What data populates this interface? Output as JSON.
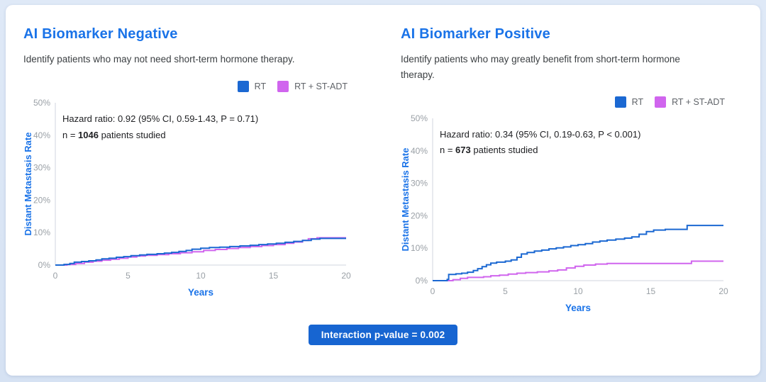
{
  "colors": {
    "accent": "#1a73e8",
    "badge_background": "#1765d1",
    "rt_blue": "#1b68d2",
    "st_adt_magenta": "#d065ee",
    "axis_line": "#e1e4ea",
    "tick_text": "#9aa0a6"
  },
  "legend": [
    {
      "label": "RT",
      "color": "#1b68d2"
    },
    {
      "label": "RT + ST-ADT",
      "color": "#d065ee"
    }
  ],
  "panels": [
    {
      "title": "AI Biomarker Negative",
      "subtitle": "Identify patients who may not need short-term hormone therapy.",
      "hazard": "Hazard ratio: 0.92 (95% CI, 0.59-1.43, P = 0.71)",
      "n_prefix": "n = ",
      "n_value": "1046",
      "n_suffix": " patients studied"
    },
    {
      "title": "AI Biomarker Positive",
      "subtitle": "Identify patients who may greatly benefit from short-term hormone therapy.",
      "hazard": "Hazard ratio: 0.34 (95% CI, 0.19-0.63, P < 0.001)",
      "n_prefix": "n = ",
      "n_value": "673",
      "n_suffix": " patients studied"
    }
  ],
  "footer": {
    "badge_label": "Interaction p-value = 0.002"
  },
  "chart_data": [
    {
      "type": "line",
      "title": "AI Biomarker Negative",
      "xlabel": "Years",
      "ylabel": "Distant Metastasis Rate",
      "xlim": [
        0,
        20
      ],
      "ylim": [
        0,
        50
      ],
      "xtick_values": [
        0,
        5,
        10,
        15,
        20
      ],
      "xtick_labels": [
        "0",
        "5",
        "10",
        "15",
        "20"
      ],
      "ytick_values": [
        0,
        10,
        20,
        30,
        40,
        50
      ],
      "ytick_labels": [
        "0%",
        "10%",
        "20%",
        "30%",
        "40%",
        "50%"
      ],
      "grid": false,
      "step": true,
      "legend_position": "top-right",
      "annotation": "Hazard ratio: 0.92 (95% CI, 0.59-1.43, P = 0.71); n = 1046 patients studied",
      "series": [
        {
          "name": "RT + ST-ADT",
          "color": "#d065ee",
          "points": [
            [
              0,
              0
            ],
            [
              0.8,
              0.2
            ],
            [
              1.4,
              0.5
            ],
            [
              2,
              0.9
            ],
            [
              2.6,
              1.2
            ],
            [
              3.2,
              1.5
            ],
            [
              3.8,
              1.8
            ],
            [
              4.4,
              2.1
            ],
            [
              5,
              2.5
            ],
            [
              5.6,
              2.8
            ],
            [
              6.2,
              3.0
            ],
            [
              7,
              3.2
            ],
            [
              7.8,
              3.5
            ],
            [
              8.6,
              3.8
            ],
            [
              9.4,
              4.1
            ],
            [
              10.2,
              4.5
            ],
            [
              11,
              4.8
            ],
            [
              11.8,
              5.1
            ],
            [
              12.6,
              5.4
            ],
            [
              13.4,
              5.7
            ],
            [
              14.2,
              6.0
            ],
            [
              15,
              6.3
            ],
            [
              15.8,
              6.7
            ],
            [
              16.4,
              7.1
            ],
            [
              17,
              7.6
            ],
            [
              17.4,
              8.1
            ],
            [
              18,
              8.4
            ],
            [
              20,
              8.4
            ]
          ]
        },
        {
          "name": "RT",
          "color": "#1b68d2",
          "points": [
            [
              0,
              0
            ],
            [
              0.6,
              0.2
            ],
            [
              1,
              0.5
            ],
            [
              1.3,
              0.9
            ],
            [
              1.8,
              1.1
            ],
            [
              2.3,
              1.3
            ],
            [
              2.8,
              1.6
            ],
            [
              3.2,
              1.9
            ],
            [
              3.7,
              2.1
            ],
            [
              4.2,
              2.4
            ],
            [
              4.7,
              2.6
            ],
            [
              5.2,
              2.9
            ],
            [
              5.8,
              3.1
            ],
            [
              6.3,
              3.3
            ],
            [
              7,
              3.5
            ],
            [
              7.5,
              3.7
            ],
            [
              8,
              3.9
            ],
            [
              8.5,
              4.2
            ],
            [
              9,
              4.5
            ],
            [
              9.4,
              4.9
            ],
            [
              10,
              5.2
            ],
            [
              10.6,
              5.4
            ],
            [
              11.3,
              5.5
            ],
            [
              12,
              5.7
            ],
            [
              12.7,
              5.9
            ],
            [
              13.4,
              6.1
            ],
            [
              14,
              6.3
            ],
            [
              14.6,
              6.5
            ],
            [
              15.2,
              6.7
            ],
            [
              15.8,
              7.0
            ],
            [
              16.4,
              7.3
            ],
            [
              17,
              7.6
            ],
            [
              17.6,
              8.0
            ],
            [
              18.2,
              8.2
            ],
            [
              20,
              8.2
            ]
          ]
        }
      ]
    },
    {
      "type": "line",
      "title": "AI Biomarker Positive",
      "xlabel": "Years",
      "ylabel": "Distant Metastasis Rate",
      "xlim": [
        0,
        20
      ],
      "ylim": [
        0,
        50
      ],
      "xtick_values": [
        0,
        5,
        10,
        15,
        20
      ],
      "xtick_labels": [
        "0",
        "5",
        "10",
        "15",
        "20"
      ],
      "ytick_values": [
        0,
        10,
        20,
        30,
        40,
        50
      ],
      "ytick_labels": [
        "0%",
        "10%",
        "20%",
        "30%",
        "40%",
        "50%"
      ],
      "grid": false,
      "step": true,
      "legend_position": "top-right",
      "annotation": "Hazard ratio: 0.34 (95% CI, 0.19-0.63, P < 0.001); n = 673 patients studied",
      "series": [
        {
          "name": "RT + ST-ADT",
          "color": "#d065ee",
          "points": [
            [
              0,
              0
            ],
            [
              1.4,
              0.3
            ],
            [
              1.9,
              0.7
            ],
            [
              2.4,
              1.0
            ],
            [
              3.5,
              1.2
            ],
            [
              4,
              1.5
            ],
            [
              4.6,
              1.7
            ],
            [
              5.2,
              2.0
            ],
            [
              5.8,
              2.3
            ],
            [
              6.4,
              2.5
            ],
            [
              7.2,
              2.7
            ],
            [
              8,
              3.0
            ],
            [
              8.6,
              3.3
            ],
            [
              9.2,
              3.9
            ],
            [
              9.8,
              4.4
            ],
            [
              10.4,
              4.8
            ],
            [
              11.2,
              5.1
            ],
            [
              12,
              5.3
            ],
            [
              17.6,
              5.3
            ],
            [
              17.8,
              6.0
            ],
            [
              20,
              6.0
            ]
          ]
        },
        {
          "name": "RT",
          "color": "#1b68d2",
          "points": [
            [
              0,
              0
            ],
            [
              1,
              0.4
            ],
            [
              1.1,
              1.9
            ],
            [
              1.6,
              2.1
            ],
            [
              2,
              2.3
            ],
            [
              2.4,
              2.6
            ],
            [
              2.8,
              3.1
            ],
            [
              3.1,
              3.7
            ],
            [
              3.4,
              4.3
            ],
            [
              3.7,
              4.9
            ],
            [
              4,
              5.4
            ],
            [
              4.4,
              5.7
            ],
            [
              5,
              6.0
            ],
            [
              5.4,
              6.4
            ],
            [
              5.8,
              7.2
            ],
            [
              6.1,
              8.2
            ],
            [
              6.5,
              8.7
            ],
            [
              7,
              9.1
            ],
            [
              7.5,
              9.4
            ],
            [
              8,
              9.8
            ],
            [
              8.5,
              10.1
            ],
            [
              9,
              10.4
            ],
            [
              9.5,
              10.8
            ],
            [
              10,
              11.1
            ],
            [
              10.5,
              11.4
            ],
            [
              11,
              11.9
            ],
            [
              11.5,
              12.2
            ],
            [
              12,
              12.5
            ],
            [
              12.6,
              12.8
            ],
            [
              13.2,
              13.1
            ],
            [
              13.7,
              13.5
            ],
            [
              14.2,
              14.3
            ],
            [
              14.7,
              15.1
            ],
            [
              15.2,
              15.6
            ],
            [
              16,
              15.8
            ],
            [
              17.5,
              17.0
            ],
            [
              20,
              17.0
            ]
          ]
        }
      ]
    }
  ]
}
